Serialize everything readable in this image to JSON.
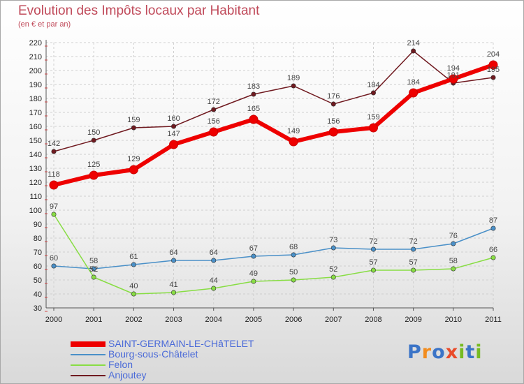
{
  "chart_data": {
    "type": "line",
    "title": "Evolution des Impôts locaux par Habitant",
    "subtitle": "(en € et par an)",
    "xlabel": "",
    "ylabel": "",
    "ylim": [
      30,
      220
    ],
    "y_ticks": [
      30,
      40,
      50,
      60,
      70,
      80,
      90,
      100,
      110,
      120,
      130,
      140,
      150,
      160,
      170,
      180,
      190,
      200,
      210,
      220
    ],
    "categories": [
      "2000",
      "2001",
      "2002",
      "2003",
      "2004",
      "2005",
      "2006",
      "2007",
      "2008",
      "2009",
      "2010",
      "2011"
    ],
    "grid": true,
    "legend_position": "bottom-left",
    "series": [
      {
        "name": "SAINT-GERMAIN-LE-CHâTELET",
        "color": "#ee0000",
        "values": [
          118,
          125,
          129,
          147,
          156,
          165,
          149,
          156,
          159,
          184,
          194,
          204
        ]
      },
      {
        "name": "Bourg-sous-Châtelet",
        "color": "#4a90c8",
        "values": [
          60,
          58,
          61,
          64,
          64,
          67,
          68,
          73,
          72,
          72,
          76,
          87
        ]
      },
      {
        "name": "Felon",
        "color": "#88dd44",
        "values": [
          97,
          52,
          40,
          41,
          44,
          49,
          50,
          52,
          57,
          57,
          58,
          66
        ]
      },
      {
        "name": "Anjoutey",
        "color": "#701a20",
        "values": [
          142,
          150,
          159,
          160,
          172,
          183,
          189,
          176,
          184,
          214,
          191,
          195
        ]
      }
    ]
  },
  "logo": {
    "letters": [
      "P",
      "r",
      "o",
      "x",
      "i",
      "t",
      "i"
    ],
    "colors": [
      "#3b74c7",
      "#f28c1e",
      "#3b74c7",
      "#e94b2a",
      "#77bb22",
      "#3b74c7",
      "#77bb22"
    ]
  }
}
